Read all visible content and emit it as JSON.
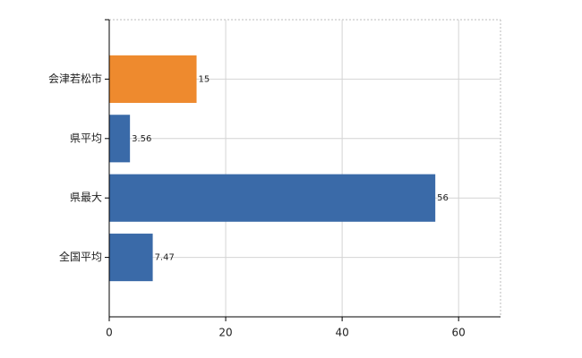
{
  "chart_data": {
    "type": "barh",
    "categories": [
      "会津若松市",
      "県平均",
      "県最大",
      "全国平均"
    ],
    "values": [
      15,
      3.56,
      56,
      7.47
    ],
    "colors": [
      "#ee8a2e",
      "#3a6aa8",
      "#3a6aa8",
      "#3a6aa8"
    ],
    "xlim": [
      0,
      67.2
    ],
    "xticks": [
      0,
      20,
      40,
      60
    ],
    "grid": true
  }
}
